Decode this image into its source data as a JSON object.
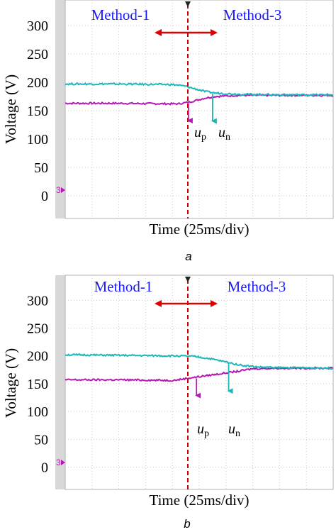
{
  "chart_data": [
    {
      "type": "line",
      "panel_label": "a",
      "xlabel": "Time (25ms/div)",
      "ylabel": "Voltage (V)",
      "ylim": [
        -40,
        345
      ],
      "yticks": [
        0,
        50,
        100,
        150,
        200,
        250,
        300
      ],
      "grid": true,
      "ground_marker": "3",
      "regions": [
        "Method-1",
        "Method-3"
      ],
      "switch_x_div": 4.2,
      "x_div_range": [
        0,
        10
      ],
      "series": [
        {
          "name": "up",
          "symbol": "u",
          "subscript": "p",
          "color": "#b31ab3",
          "x": [
            0,
            2,
            4.0,
            4.2,
            4.5,
            4.8,
            5.2,
            5.6,
            6.5,
            8,
            10
          ],
          "values": [
            163,
            163,
            162,
            162,
            164,
            167,
            172,
            175,
            177,
            177,
            177
          ]
        },
        {
          "name": "un",
          "symbol": "u",
          "subscript": "n",
          "color": "#1ab8b8",
          "x": [
            0,
            2,
            4.0,
            4.2,
            4.5,
            4.8,
            5.2,
            5.6,
            6.5,
            8,
            10
          ],
          "values": [
            197,
            197,
            196,
            195,
            193,
            189,
            184,
            181,
            179,
            178,
            178
          ]
        }
      ],
      "arrow_annotations": [
        {
          "label_for": "up",
          "x_div": 4.6
        },
        {
          "label_for": "un",
          "x_div": 5.5
        }
      ]
    },
    {
      "type": "line",
      "panel_label": "b",
      "xlabel": "Time (25ms/div)",
      "ylabel": "Voltage (V)",
      "ylim": [
        -40,
        345
      ],
      "yticks": [
        0,
        50,
        100,
        150,
        200,
        250,
        300
      ],
      "grid": true,
      "ground_marker": "3",
      "regions": [
        "Method-1",
        "Method-3"
      ],
      "switch_x_div": 4.2,
      "x_div_range": [
        0,
        10
      ],
      "series": [
        {
          "name": "up",
          "symbol": "u",
          "subscript": "p",
          "color": "#b31ab3",
          "x": [
            0,
            2,
            4.0,
            4.2,
            4.6,
            5.2,
            5.8,
            6.4,
            7.0,
            8,
            10
          ],
          "values": [
            157,
            157,
            156,
            157,
            160,
            164,
            168,
            172,
            177,
            178,
            178
          ]
        },
        {
          "name": "un",
          "symbol": "u",
          "subscript": "n",
          "color": "#1ab8b8",
          "x": [
            0,
            2,
            4.0,
            4.2,
            4.8,
            5.4,
            6.0,
            6.6,
            7.2,
            8,
            10
          ],
          "values": [
            202,
            201,
            200,
            200,
            199,
            195,
            189,
            183,
            180,
            179,
            178
          ]
        }
      ],
      "arrow_annotations": [
        {
          "label_for": "up",
          "x_div": 4.9
        },
        {
          "label_for": "un",
          "x_div": 6.1
        }
      ]
    }
  ],
  "colors": {
    "method_text": "#1a1aff",
    "switch_line": "#d00000",
    "region_arrow": "#e00000",
    "grid": "#c8c8c8",
    "axis_panel": "#d8d8d8"
  }
}
